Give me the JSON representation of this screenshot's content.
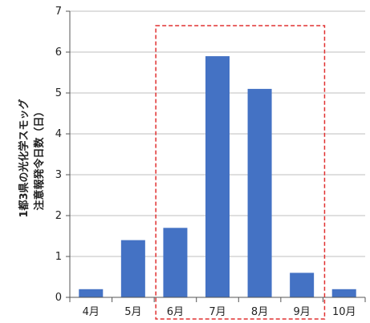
{
  "chart_data": {
    "type": "bar",
    "title": "",
    "xlabel": "",
    "ylabel_line1": "1都3県の光化学スモッグ",
    "ylabel_line2": "注意報発令日数（日）",
    "categories": [
      "4月",
      "5月",
      "6月",
      "7月",
      "8月",
      "9月",
      "10月"
    ],
    "values": [
      0.2,
      1.4,
      1.7,
      5.9,
      5.1,
      0.6,
      0.2
    ],
    "ylim": [
      0,
      7
    ],
    "yticks": [
      0,
      1,
      2,
      3,
      4,
      5,
      6,
      7
    ],
    "grid": true,
    "bar_color": "#4472c4",
    "highlight": {
      "from_category": "6月",
      "to_category": "9月",
      "color": "#e03030",
      "style": "dashed"
    }
  }
}
